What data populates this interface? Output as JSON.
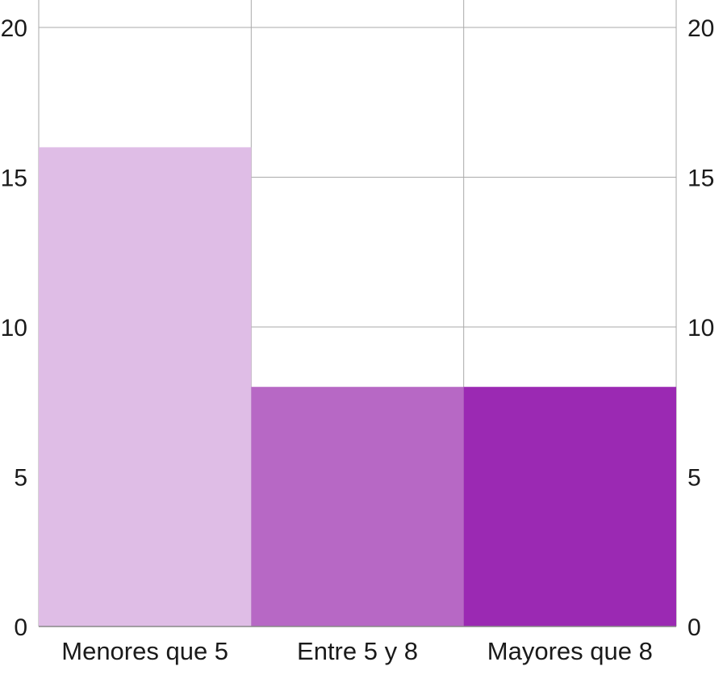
{
  "chart_data": {
    "type": "bar",
    "categories": [
      "Menores que 5",
      "Entre 5 y 8",
      "Mayores que 8"
    ],
    "values": [
      16,
      8,
      8
    ],
    "colors": [
      "#dfbde6",
      "#b768c5",
      "#9b29b3"
    ],
    "ylim": [
      0,
      20
    ],
    "y_ticks": [
      "0",
      "5",
      "10",
      "15",
      "20"
    ],
    "y_axis_left": true,
    "y_axis_right": true,
    "grid": true,
    "title": "",
    "xlabel": "",
    "ylabel": ""
  }
}
